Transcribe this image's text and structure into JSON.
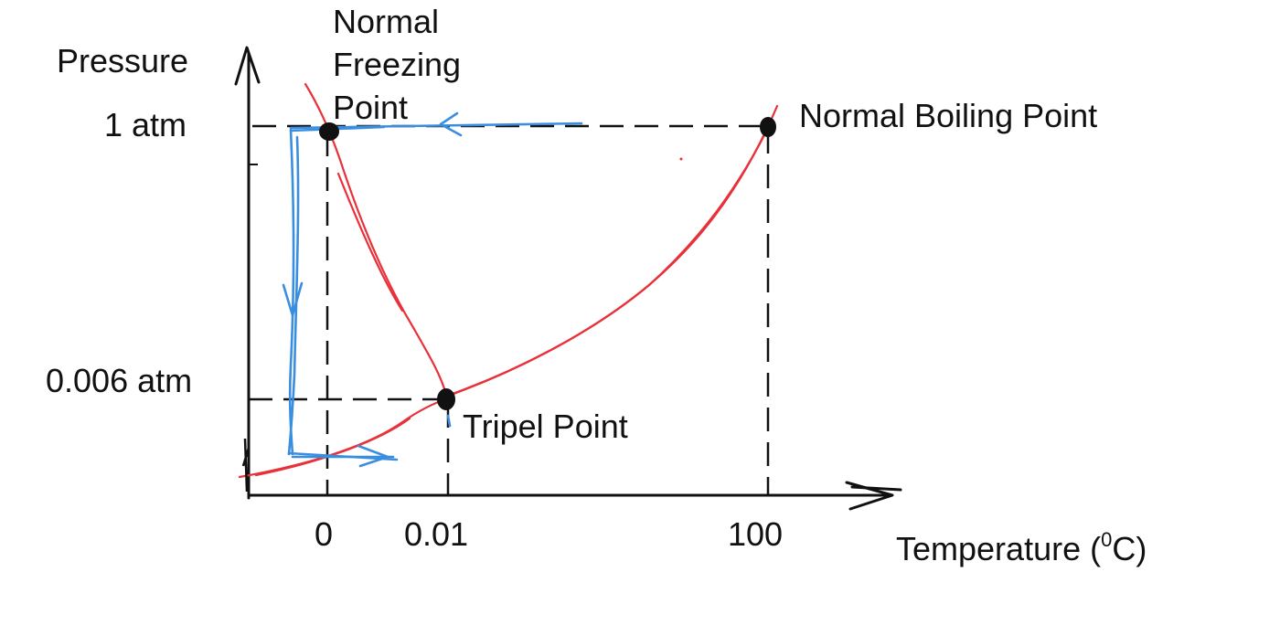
{
  "diagram": {
    "y_axis_label": "Pressure",
    "x_axis_label": "Temperature (",
    "x_axis_unit_sup": "0",
    "x_axis_unit_tail": "C)",
    "pressure_ticks": {
      "one_atm": "1 atm",
      "triple": "0.006 atm"
    },
    "temperature_ticks": {
      "zero": "0",
      "triple": "0.01",
      "hundred": "100"
    },
    "points": {
      "normal_freezing": "Normal Freezing Point",
      "normal_boiling": "Normal Boiling Point",
      "triple": "Tripel Point"
    },
    "colors": {
      "ink": "#111111",
      "phase_boundary": "#e8313a",
      "path": "#3a8ee0"
    }
  }
}
